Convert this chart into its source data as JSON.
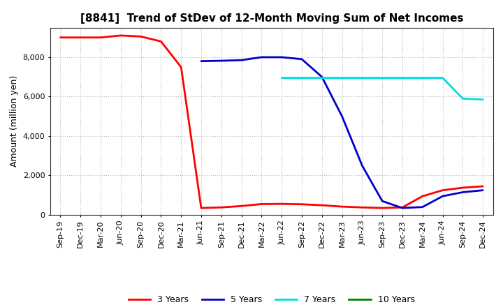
{
  "title": "[8841]  Trend of StDev of 12-Month Moving Sum of Net Incomes",
  "ylabel": "Amount (million yen)",
  "bg_color": "#ffffff",
  "plot_bg_color": "#ffffff",
  "grid_color": "#bbbbbb",
  "ylim": [
    0,
    9500
  ],
  "yticks": [
    0,
    2000,
    4000,
    6000,
    8000
  ],
  "series": {
    "3 Years": {
      "color": "#ff0000",
      "x": [
        0,
        1,
        2,
        3,
        4,
        5,
        6,
        7,
        8,
        9,
        10,
        11,
        12,
        13,
        14,
        15,
        16,
        17,
        18,
        19,
        20,
        21
      ],
      "y": [
        9000,
        9000,
        9000,
        9100,
        9050,
        8800,
        7500,
        350,
        380,
        450,
        550,
        560,
        540,
        490,
        420,
        380,
        350,
        380,
        950,
        1250,
        1380,
        1450
      ]
    },
    "5 Years": {
      "color": "#0000cc",
      "x": [
        7,
        8,
        9,
        10,
        11,
        12,
        13,
        14,
        15,
        16,
        17,
        18,
        19,
        20,
        21
      ],
      "y": [
        7800,
        7820,
        7850,
        8000,
        8000,
        7900,
        7000,
        5000,
        2500,
        700,
        350,
        400,
        950,
        1150,
        1250
      ]
    },
    "7 Years": {
      "color": "#00dddd",
      "x": [
        11,
        12,
        13,
        14,
        15,
        16,
        17,
        18,
        19,
        20,
        21
      ],
      "y": [
        6950,
        6950,
        6950,
        6950,
        6950,
        6950,
        6950,
        6950,
        6950,
        5900,
        5850
      ]
    },
    "10 Years": {
      "color": "#008000",
      "x": [],
      "y": []
    }
  },
  "legend_labels": [
    "3 Years",
    "5 Years",
    "7 Years",
    "10 Years"
  ],
  "legend_colors": [
    "#ff0000",
    "#0000cc",
    "#00dddd",
    "#008000"
  ],
  "xtick_labels": [
    "Sep-19",
    "Dec-19",
    "Mar-20",
    "Jun-20",
    "Sep-20",
    "Dec-20",
    "Mar-21",
    "Jun-21",
    "Sep-21",
    "Dec-21",
    "Mar-22",
    "Jun-22",
    "Sep-22",
    "Dec-22",
    "Mar-23",
    "Jun-23",
    "Sep-23",
    "Dec-23",
    "Mar-24",
    "Jun-24",
    "Sep-24",
    "Dec-24"
  ],
  "n_ticks": 22
}
